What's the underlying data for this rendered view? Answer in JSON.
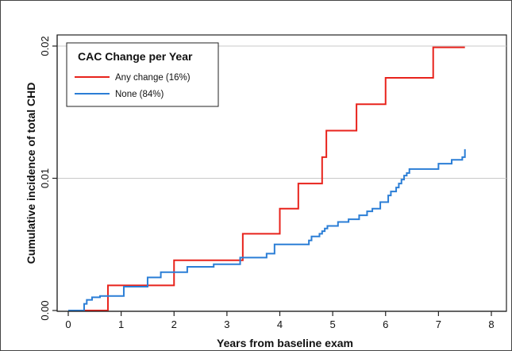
{
  "chart_data": {
    "type": "line",
    "step": true,
    "xlabel": "Years from baseline exam",
    "ylabel": "Cumulative incidence of total CHD",
    "xlim": [
      0,
      8
    ],
    "ylim": [
      0,
      0.02
    ],
    "xticks": [
      0,
      1,
      2,
      3,
      4,
      5,
      6,
      7,
      8
    ],
    "yticks": [
      0,
      0.01,
      0.02
    ],
    "xtick_labels": [
      "0",
      "1",
      "2",
      "3",
      "4",
      "5",
      "6",
      "7",
      "8"
    ],
    "ytick_labels": [
      "0.00",
      "0.01",
      "0.02"
    ],
    "grid": true,
    "grid_axis": "y",
    "legend": {
      "title": "CAC Change per Year",
      "placement": "top-left"
    },
    "series": [
      {
        "name": "Any change (16%)",
        "color": "#e8231c",
        "x": [
          0,
          0.75,
          2.0,
          3.3,
          4.0,
          4.35,
          4.8,
          4.88,
          5.45,
          6.0,
          6.9,
          7.5
        ],
        "y": [
          0,
          0.0019,
          0.0038,
          0.0058,
          0.0077,
          0.0096,
          0.0116,
          0.0136,
          0.0156,
          0.0176,
          0.0199,
          0.0199
        ]
      },
      {
        "name": "None (84%)",
        "color": "#2b7ed6",
        "x": [
          0,
          0.3,
          0.35,
          0.45,
          0.6,
          1.0,
          1.05,
          1.5,
          1.75,
          2.25,
          2.75,
          3.25,
          3.3,
          3.75,
          3.9,
          4.55,
          4.6,
          4.75,
          4.8,
          4.85,
          4.9,
          5.1,
          5.3,
          5.5,
          5.65,
          5.75,
          5.9,
          6.05,
          6.1,
          6.2,
          6.25,
          6.3,
          6.35,
          6.4,
          6.45,
          7.0,
          7.25,
          7.45,
          7.5,
          7.5
        ],
        "y": [
          0,
          0.0005,
          0.0008,
          0.001,
          0.0011,
          0.0011,
          0.0018,
          0.0025,
          0.0029,
          0.0033,
          0.0035,
          0.004,
          0.004,
          0.0043,
          0.005,
          0.0053,
          0.0056,
          0.0058,
          0.006,
          0.0062,
          0.0064,
          0.0067,
          0.0069,
          0.0072,
          0.0075,
          0.0077,
          0.0082,
          0.0087,
          0.009,
          0.0093,
          0.0096,
          0.0099,
          0.0102,
          0.0104,
          0.0107,
          0.0111,
          0.0114,
          0.0116,
          0.0116,
          0.0122
        ]
      }
    ]
  }
}
